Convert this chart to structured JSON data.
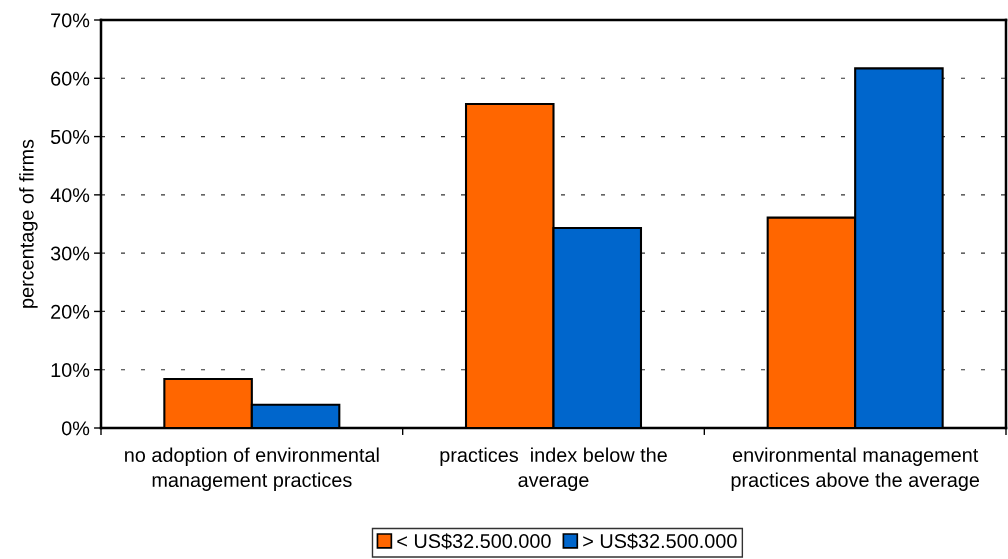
{
  "chart_data": {
    "type": "bar",
    "ylabel": "percentage of firms",
    "categories": [
      "no adoption of environmental\nmanagement practices",
      "practices  index below the\naverage",
      "environmental management\npractices above the average"
    ],
    "series": [
      {
        "name": "< US$32.500.000",
        "color": "#ff6600",
        "values": [
          8.4,
          55.6,
          36.1
        ]
      },
      {
        "name": "> US$32.500.000",
        "color": "#0066cc",
        "values": [
          4.0,
          34.3,
          61.7
        ]
      }
    ],
    "ylim": [
      0,
      70
    ],
    "yticks": [
      {
        "value": 0,
        "label": "0%"
      },
      {
        "value": 10,
        "label": "10%"
      },
      {
        "value": 20,
        "label": "20%"
      },
      {
        "value": 30,
        "label": "30%"
      },
      {
        "value": 40,
        "label": "40%"
      },
      {
        "value": 50,
        "label": "50%"
      },
      {
        "value": 60,
        "label": "60%"
      },
      {
        "value": 70,
        "label": "70%"
      }
    ],
    "grid": "y",
    "legend": "bottom"
  }
}
